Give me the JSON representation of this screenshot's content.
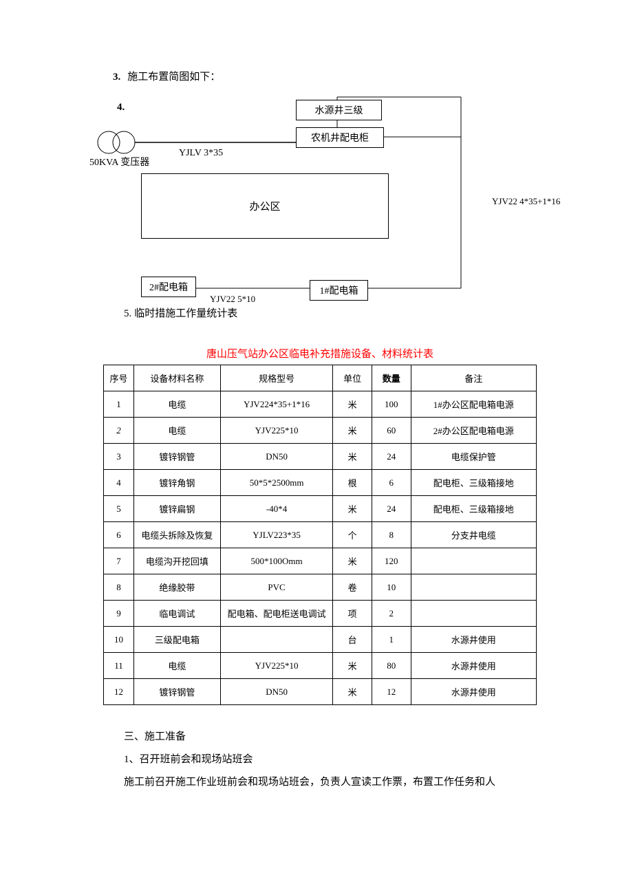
{
  "intro": {
    "num3": "3.",
    "text3": "施工布置简图如下：",
    "num4": "4."
  },
  "diagram": {
    "transformer_label": "50KVA 变压器",
    "cable_left_label": "YJLV 3*35",
    "box_water_well": "水源井三级",
    "box_agri_cabinet": "农机井配电柜",
    "box_office": "办公区",
    "box_pdb1": "1#配电箱",
    "box_pdb2": "2#配电箱",
    "cable_bottom_label": "YJV22 5*10",
    "cable_right_label": "YJV22 4*35+1*16",
    "colors": {
      "stroke": "#000000",
      "bg": "#ffffff"
    }
  },
  "caption5": {
    "num": "5.",
    "text": "临时措施工作量统计表"
  },
  "table": {
    "title": "唐山压气站办公区临电补充措施设备、材料统计表",
    "header_bg": "#ffffff",
    "border_color": "#000000",
    "columns": [
      "序号",
      "设备材料名称",
      "规格型号",
      "单位",
      "数量",
      "备注"
    ],
    "rows": [
      {
        "seq": "1",
        "name": "电缆",
        "spec": "YJV224*35+1*16",
        "unit": "米",
        "qty": "100",
        "remark": "1#办公区配电箱电源"
      },
      {
        "seq": "2",
        "name": "电缆",
        "spec": "YJV225*10",
        "unit": "米",
        "qty": "60",
        "remark": "2#办公区配电箱电源",
        "italic": true
      },
      {
        "seq": "3",
        "name": "镀锌钢管",
        "spec": "DN50",
        "unit": "米",
        "qty": "24",
        "remark": "电缆保护管"
      },
      {
        "seq": "4",
        "name": "镀锌角钢",
        "spec": "50*5*2500mm",
        "unit": "根",
        "qty": "6",
        "remark": "配电柜、三级箱接地"
      },
      {
        "seq": "5",
        "name": "镀锌扁钢",
        "spec": "-40*4",
        "unit": "米",
        "qty": "24",
        "remark": "配电柜、三级箱接地"
      },
      {
        "seq": "6",
        "name": "电缆头拆除及恢复",
        "spec": "YJLV223*35",
        "unit": "个",
        "qty": "8",
        "remark": "分支井电缆"
      },
      {
        "seq": "7",
        "name": "电缆沟开挖回填",
        "spec": "500*100Omm",
        "unit": "米",
        "qty": "120",
        "remark": ""
      },
      {
        "seq": "8",
        "name": "绝缘胶带",
        "spec": "PVC",
        "unit": "卷",
        "qty": "10",
        "remark": ""
      },
      {
        "seq": "9",
        "name": "临电调试",
        "spec": "配电箱、配电柜送电调试",
        "unit": "项",
        "qty": "2",
        "remark": ""
      },
      {
        "seq": "10",
        "name": "三级配电箱",
        "spec": "",
        "unit": "台",
        "qty": "1",
        "remark": "水源井使用"
      },
      {
        "seq": "11",
        "name": "电缆",
        "spec": "YJV225*10",
        "unit": "米",
        "qty": "80",
        "remark": "水源井使用"
      },
      {
        "seq": "12",
        "name": "镀锌钢管",
        "spec": "DN50",
        "unit": "米",
        "qty": "12",
        "remark": "水源井使用"
      }
    ]
  },
  "body": {
    "heading3": "三、施工准备",
    "item1_num": "1、",
    "item1_text": "召开班前会和现场站班会",
    "para": "施工前召开施工作业班前会和现场站班会，负责人宣读工作票，布置工作任务和人"
  }
}
